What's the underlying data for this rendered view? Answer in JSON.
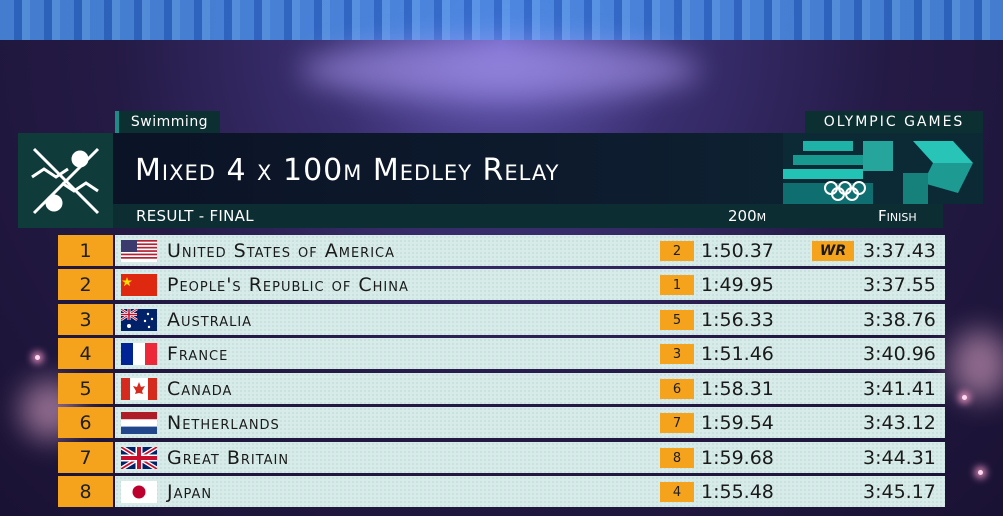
{
  "event": {
    "sport": "Swimming",
    "games": "OLYMPIC GAMES",
    "title": "Mixed 4 x 100m Medley Relay",
    "result_label": "RESULT - FINAL",
    "col_split": "200m",
    "col_finish": "Finish"
  },
  "results": [
    {
      "rank": "1",
      "country": "United States of America",
      "flag": "usa-flag",
      "split_rank": "2",
      "split": "1:50.37",
      "record": "WR",
      "finish": "3:37.43"
    },
    {
      "rank": "2",
      "country": "People's Republic of China",
      "flag": "china-flag",
      "split_rank": "1",
      "split": "1:49.95",
      "record": "",
      "finish": "3:37.55"
    },
    {
      "rank": "3",
      "country": "Australia",
      "flag": "australia-flag",
      "split_rank": "5",
      "split": "1:56.33",
      "record": "",
      "finish": "3:38.76"
    },
    {
      "rank": "4",
      "country": "France",
      "flag": "france-flag",
      "split_rank": "3",
      "split": "1:51.46",
      "record": "",
      "finish": "3:40.96"
    },
    {
      "rank": "5",
      "country": "Canada",
      "flag": "canada-flag",
      "split_rank": "6",
      "split": "1:58.31",
      "record": "",
      "finish": "3:41.41"
    },
    {
      "rank": "6",
      "country": "Netherlands",
      "flag": "netherlands-flag",
      "split_rank": "7",
      "split": "1:59.54",
      "record": "",
      "finish": "3:43.12"
    },
    {
      "rank": "7",
      "country": "Great Britain",
      "flag": "great-britain-flag",
      "split_rank": "8",
      "split": "1:59.68",
      "record": "",
      "finish": "3:44.31"
    },
    {
      "rank": "8",
      "country": "Japan",
      "flag": "japan-flag",
      "split_rank": "4",
      "split": "1:55.48",
      "record": "",
      "finish": "3:45.17"
    }
  ],
  "colors": {
    "accent_orange": "#f5a21c",
    "header_dark": "#0c2e33",
    "row_bg": "#d7ece8"
  },
  "icons": {
    "sport_pictogram": "swimming-pictogram-icon",
    "olympic_rings": "olympic-rings-icon",
    "brand_emblem": "paris-2024-emblem-icon"
  }
}
